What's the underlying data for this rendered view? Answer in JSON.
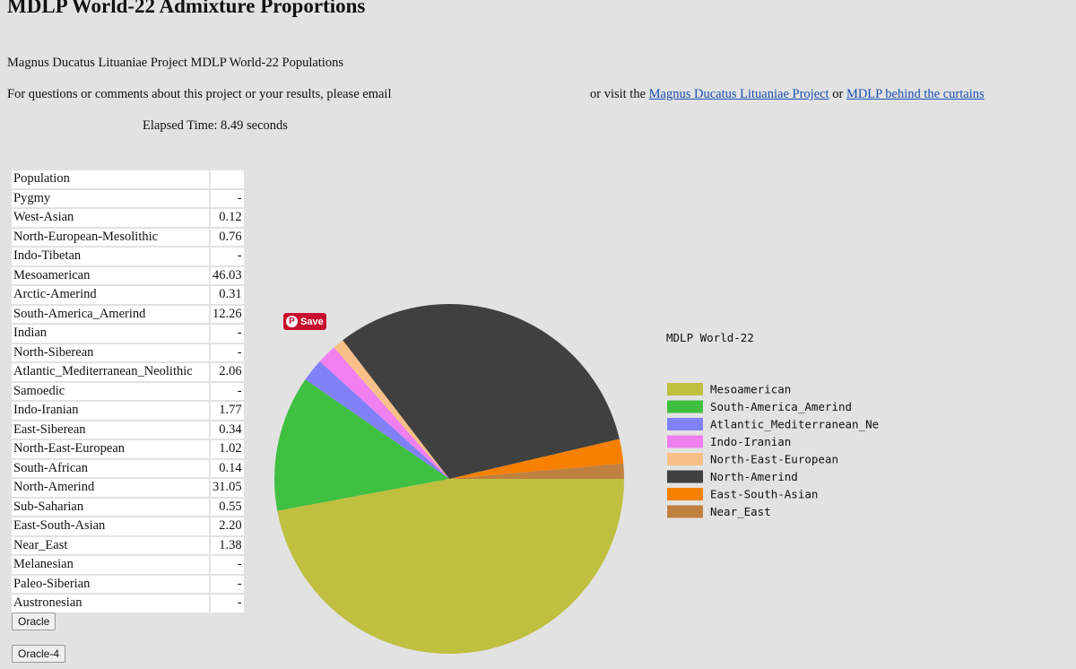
{
  "page": {
    "title": "MDLP World-22 Admixture Proportions",
    "subtitle": "Magnus Ducatus Lituaniae Project MDLP World-22 Populations",
    "contact_prefix": "For questions or comments about this project or your results, please email",
    "contact_visit": "or visit the",
    "link_project": "Magnus Ducatus Lituaniae Project",
    "contact_or": "or",
    "link_curtains": "MDLP behind the curtains",
    "elapsed": "Elapsed Time: 8.49 seconds"
  },
  "table": {
    "header": "Population",
    "rows": [
      {
        "name": "Pygmy",
        "value": "-"
      },
      {
        "name": "West-Asian",
        "value": "0.12"
      },
      {
        "name": "North-European-Mesolithic",
        "value": "0.76"
      },
      {
        "name": "Indo-Tibetan",
        "value": "-"
      },
      {
        "name": "Mesoamerican",
        "value": "46.03"
      },
      {
        "name": "Arctic-Amerind",
        "value": "0.31"
      },
      {
        "name": "South-America_Amerind",
        "value": "12.26"
      },
      {
        "name": "Indian",
        "value": "-"
      },
      {
        "name": "North-Siberean",
        "value": "-"
      },
      {
        "name": "Atlantic_Mediterranean_Neolithic",
        "value": "2.06"
      },
      {
        "name": "Samoedic",
        "value": "-"
      },
      {
        "name": "Indo-Iranian",
        "value": "1.77"
      },
      {
        "name": "East-Siberean",
        "value": "0.34"
      },
      {
        "name": "North-East-European",
        "value": "1.02"
      },
      {
        "name": "South-African",
        "value": "0.14"
      },
      {
        "name": "North-Amerind",
        "value": "31.05"
      },
      {
        "name": "Sub-Saharian",
        "value": "0.55"
      },
      {
        "name": "East-South-Asian",
        "value": "2.20"
      },
      {
        "name": "Near_East",
        "value": "1.38"
      },
      {
        "name": "Melanesian",
        "value": "-"
      },
      {
        "name": "Paleo-Siberian",
        "value": "-"
      },
      {
        "name": "Austronesian",
        "value": "-"
      }
    ]
  },
  "buttons": {
    "oracle": "Oracle",
    "oracle4": "Oracle-4",
    "save": "Save"
  },
  "chart_data": {
    "type": "pie",
    "title": "MDLP World-22",
    "legend_position": "right",
    "series": [
      {
        "name": "Mesoamerican",
        "value": 46.03,
        "color": "#bfbf40"
      },
      {
        "name": "South-America_Amerind",
        "value": 12.26,
        "color": "#40c040"
      },
      {
        "name": "Atlantic_Mediterranean_Ne",
        "value": 2.06,
        "color": "#8080f8"
      },
      {
        "name": "Indo-Iranian",
        "value": 1.77,
        "color": "#f080f0"
      },
      {
        "name": "North-East-European",
        "value": 1.02,
        "color": "#f8c088"
      },
      {
        "name": "North-Amerind",
        "value": 31.05,
        "color": "#404040"
      },
      {
        "name": "East-South-Asian",
        "value": 2.2,
        "color": "#f88000"
      },
      {
        "name": "Near_East",
        "value": 1.38,
        "color": "#c08040"
      }
    ]
  }
}
